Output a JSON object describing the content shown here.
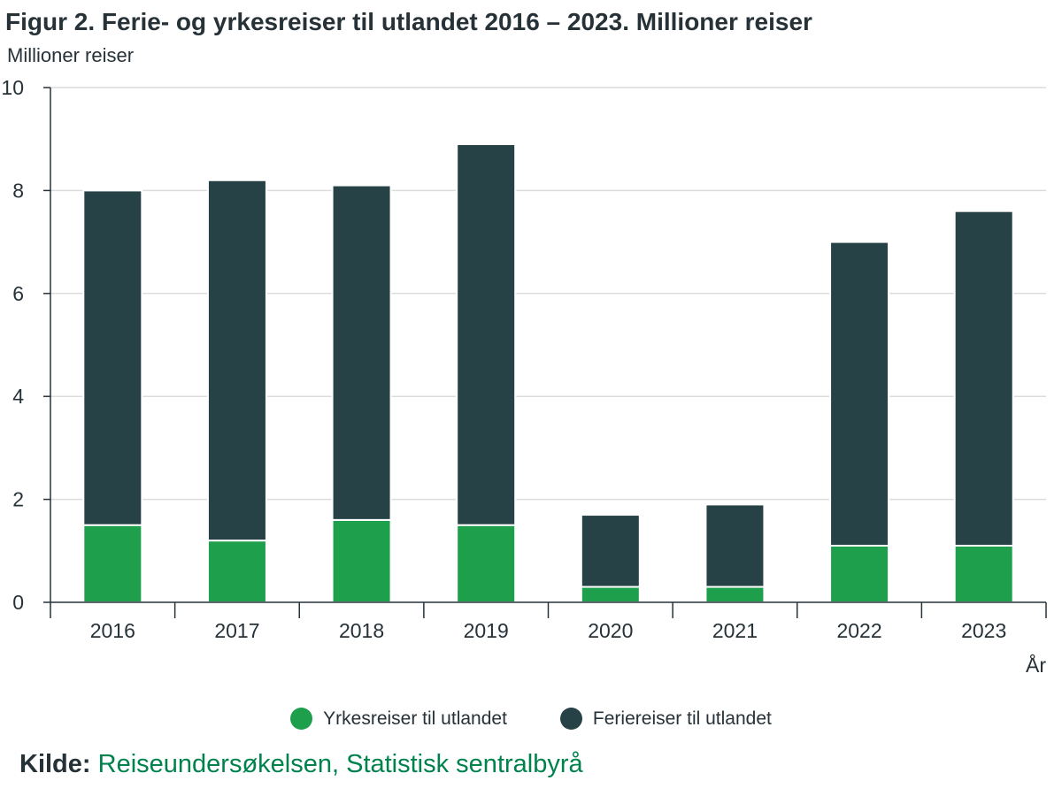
{
  "colors": {
    "yrkes": "#1E9F4B",
    "ferie": "#274247",
    "grid": "#dcdcdc",
    "axis": "#263238",
    "source_link": "#00824D"
  },
  "source": {
    "label": "Kilde:",
    "text": "Reiseundersøkelsen, Statistisk sentralbyrå"
  },
  "chart_data": {
    "type": "bar",
    "stacked": true,
    "title": "Figur 2. Ferie- og yrkesreiser til utlandet 2016 – 2023. Millioner reiser",
    "ylabel": "Millioner reiser",
    "xlabel": "År",
    "categories": [
      "2016",
      "2017",
      "2018",
      "2019",
      "2020",
      "2021",
      "2022",
      "2023"
    ],
    "ylim": [
      0,
      10
    ],
    "yticks": [
      0,
      2,
      4,
      6,
      8,
      10
    ],
    "grid": true,
    "legend_position": "bottom",
    "series": [
      {
        "name": "Yrkesreiser til utlandet",
        "color": "#1E9F4B",
        "values": [
          1.5,
          1.2,
          1.6,
          1.5,
          0.3,
          0.3,
          1.1,
          1.1
        ]
      },
      {
        "name": "Feriereiser til utlandet",
        "color": "#274247",
        "values": [
          6.5,
          7.0,
          6.5,
          7.4,
          1.4,
          1.6,
          5.9,
          6.5
        ]
      }
    ]
  }
}
